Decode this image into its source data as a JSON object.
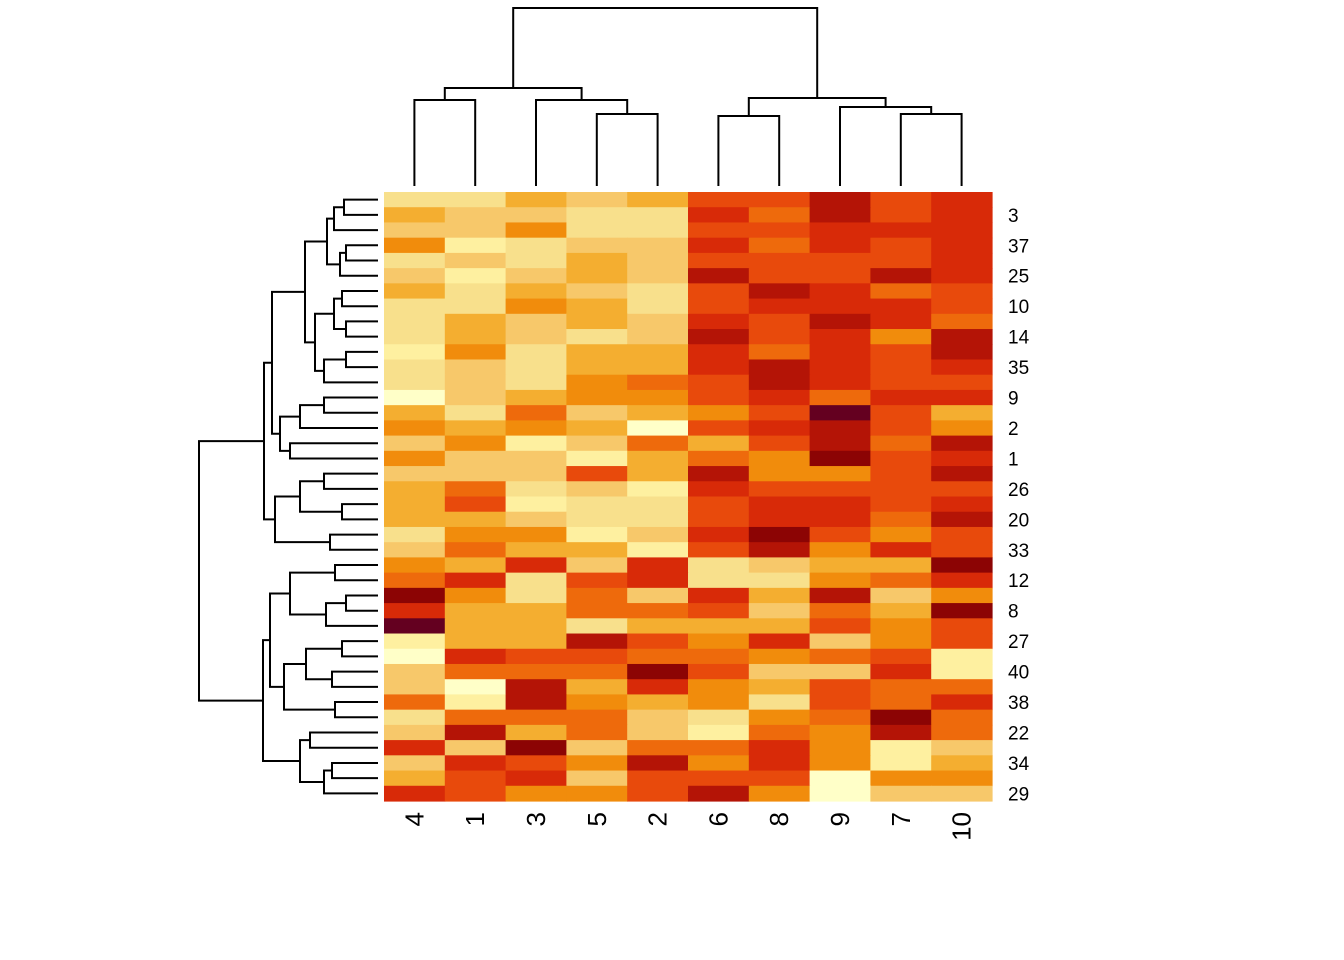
{
  "chart_data": {
    "type": "heatmap",
    "title": "",
    "xlabel": "",
    "ylabel": "",
    "columns": [
      "4",
      "1",
      "3",
      "5",
      "2",
      "6",
      "8",
      "9",
      "7",
      "10"
    ],
    "row_labels_shown": [
      "3",
      "37",
      "25",
      "10",
      "14",
      "35",
      "9",
      "2",
      "1",
      "26",
      "20",
      "33",
      "12",
      "8",
      "27",
      "40",
      "38",
      "22",
      "34",
      "29"
    ],
    "n_rows": 40,
    "color_scale": [
      "#FFFFC8",
      "#FEF0A0",
      "#F8E08C",
      "#F7C86A",
      "#F4AE30",
      "#F18C0C",
      "#EE6A0C",
      "#E84A0C",
      "#D82A08",
      "#B41406",
      "#8C0404",
      "#640020"
    ],
    "value_range": [
      0,
      11
    ],
    "values": [
      [
        2,
        2,
        4,
        3,
        4,
        7,
        7,
        9,
        7,
        8
      ],
      [
        4,
        3,
        3,
        2,
        2,
        8,
        6,
        9,
        7,
        8
      ],
      [
        3,
        3,
        5,
        2,
        2,
        7,
        7,
        8,
        8,
        8
      ],
      [
        5,
        1,
        2,
        3,
        3,
        8,
        6,
        8,
        7,
        8
      ],
      [
        2,
        3,
        2,
        4,
        3,
        7,
        7,
        7,
        7,
        8
      ],
      [
        3,
        1,
        3,
        4,
        3,
        9,
        7,
        7,
        9,
        8
      ],
      [
        4,
        2,
        4,
        3,
        2,
        7,
        9,
        8,
        6,
        7
      ],
      [
        2,
        2,
        5,
        4,
        2,
        7,
        8,
        8,
        8,
        7
      ],
      [
        2,
        4,
        3,
        4,
        3,
        8,
        7,
        9,
        8,
        6
      ],
      [
        2,
        4,
        3,
        2,
        3,
        9,
        7,
        8,
        5,
        9
      ],
      [
        1,
        5,
        2,
        4,
        4,
        8,
        6,
        8,
        7,
        9
      ],
      [
        2,
        3,
        2,
        4,
        4,
        8,
        9,
        8,
        7,
        8
      ],
      [
        2,
        3,
        2,
        5,
        6,
        7,
        9,
        8,
        7,
        7
      ],
      [
        0,
        3,
        4,
        5,
        5,
        7,
        8,
        6,
        8,
        8
      ],
      [
        4,
        2,
        6,
        3,
        4,
        5,
        7,
        11,
        7,
        4
      ],
      [
        5,
        4,
        5,
        4,
        0,
        7,
        8,
        9,
        7,
        5
      ],
      [
        3,
        5,
        1,
        3,
        6,
        4,
        7,
        9,
        6,
        9
      ],
      [
        5,
        3,
        3,
        1,
        4,
        6,
        5,
        10,
        7,
        8
      ],
      [
        3,
        3,
        3,
        7,
        4,
        9,
        5,
        5,
        7,
        9
      ],
      [
        4,
        6,
        2,
        3,
        1,
        8,
        7,
        7,
        7,
        7
      ],
      [
        4,
        7,
        1,
        2,
        2,
        7,
        8,
        8,
        7,
        8
      ],
      [
        4,
        4,
        3,
        2,
        2,
        7,
        8,
        8,
        6,
        9
      ],
      [
        2,
        5,
        5,
        1,
        3,
        8,
        10,
        7,
        5,
        7
      ],
      [
        3,
        6,
        4,
        4,
        1,
        7,
        9,
        5,
        8,
        7
      ],
      [
        5,
        4,
        8,
        3,
        8,
        2,
        3,
        4,
        4,
        10
      ],
      [
        6,
        8,
        2,
        7,
        8,
        2,
        2,
        5,
        6,
        8
      ],
      [
        10,
        5,
        2,
        6,
        3,
        8,
        4,
        9,
        3,
        5
      ],
      [
        8,
        4,
        4,
        6,
        6,
        7,
        3,
        6,
        4,
        10
      ],
      [
        11,
        4,
        4,
        2,
        4,
        4,
        4,
        7,
        5,
        7
      ],
      [
        1,
        4,
        4,
        9,
        7,
        5,
        8,
        3,
        5,
        7
      ],
      [
        0,
        8,
        7,
        7,
        6,
        6,
        5,
        6,
        7,
        1
      ],
      [
        3,
        6,
        6,
        6,
        10,
        7,
        3,
        3,
        8,
        1
      ],
      [
        3,
        0,
        9,
        4,
        8,
        5,
        4,
        7,
        6,
        6
      ],
      [
        6,
        1,
        9,
        5,
        4,
        5,
        2,
        7,
        6,
        8
      ],
      [
        2,
        6,
        6,
        6,
        3,
        2,
        5,
        6,
        10,
        6
      ],
      [
        3,
        9,
        4,
        6,
        3,
        1,
        6,
        5,
        9,
        6
      ],
      [
        8,
        3,
        10,
        3,
        6,
        6,
        8,
        5,
        1,
        3
      ],
      [
        3,
        8,
        7,
        5,
        9,
        5,
        8,
        5,
        1,
        4
      ],
      [
        4,
        7,
        8,
        3,
        7,
        7,
        7,
        0,
        5,
        5
      ],
      [
        8,
        7,
        5,
        5,
        7,
        9,
        5,
        0,
        3,
        3
      ]
    ]
  }
}
